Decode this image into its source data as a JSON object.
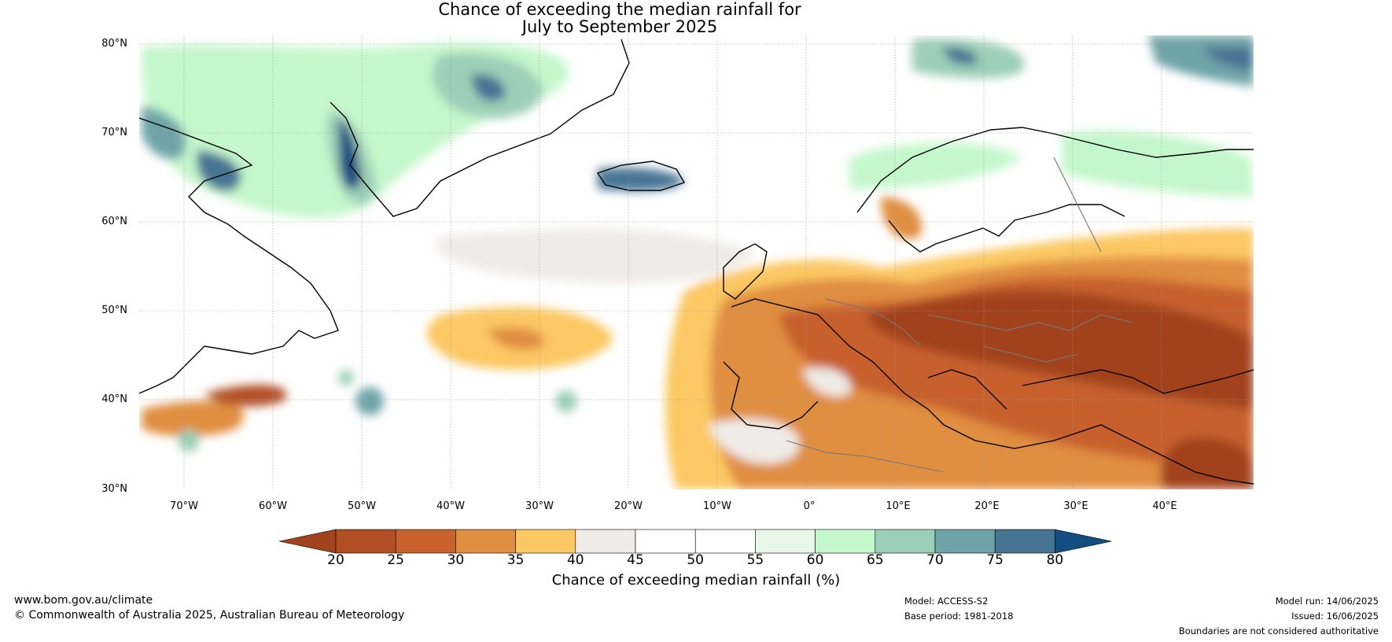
{
  "title": {
    "line1": "Chance of exceeding the median rainfall for",
    "line2": "July to September 2025"
  },
  "map": {
    "region": "North Atlantic and Europe",
    "lat_ticks": [
      "80°N",
      "70°N",
      "60°N",
      "50°N",
      "40°N",
      "30°N"
    ],
    "lon_ticks": [
      "70°W",
      "60°W",
      "50°W",
      "40°W",
      "30°W",
      "20°W",
      "10°W",
      "0°",
      "10°E",
      "20°E",
      "30°E",
      "40°E"
    ],
    "lat_range": [
      30,
      81
    ],
    "lon_range": [
      -75,
      50
    ]
  },
  "colorbar": {
    "ticks": [
      "20",
      "25",
      "30",
      "35",
      "40",
      "45",
      "50",
      "55",
      "60",
      "65",
      "70",
      "75",
      "80"
    ],
    "colors": [
      "#a1431d",
      "#b24f25",
      "#c8612e",
      "#e08e3f",
      "#fcc864",
      "#efebe6",
      "#ffffff",
      "#ffffff",
      "#e9f7e9",
      "#c4f7cb",
      "#9ccfb7",
      "#6ea4a8",
      "#467594"
    ],
    "low_extend_color": "#a1431d",
    "high_extend_color": "#124e80",
    "label": "Chance of exceeding median rainfall (%)"
  },
  "footer": {
    "website": "www.bom.gov.au/climate",
    "copyright": "© Commonwealth of Australia 2025, Australian Bureau of Meteorology",
    "model": "Model: ACCESS-S2",
    "base_period": "Base period: 1981-2018",
    "model_run": "Model run: 14/06/2025",
    "issued": "Issued: 16/06/2025",
    "disclaimer": "Boundaries are not considered authoritative"
  }
}
